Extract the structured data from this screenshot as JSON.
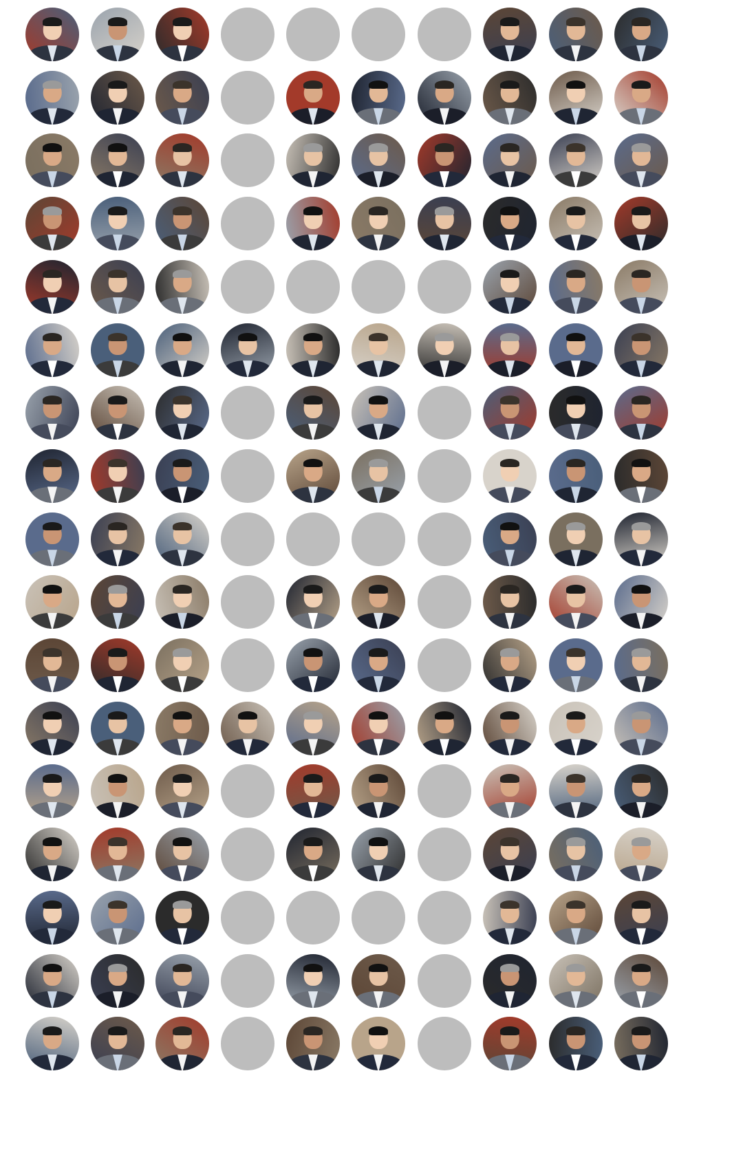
{
  "grid": {
    "columns": 10,
    "rows": 17,
    "placeholder_color": "#bdbdbd",
    "cells": [
      [
        "photo",
        "photo",
        "photo",
        "placeholder",
        "placeholder",
        "placeholder",
        "placeholder",
        "photo",
        "photo",
        "photo"
      ],
      [
        "photo",
        "photo",
        "photo",
        "placeholder",
        "photo",
        "photo",
        "photo",
        "photo",
        "photo",
        "photo"
      ],
      [
        "photo",
        "photo",
        "photo",
        "placeholder",
        "photo",
        "photo",
        "photo",
        "photo",
        "photo",
        "photo"
      ],
      [
        "photo",
        "photo",
        "photo",
        "placeholder",
        "photo",
        "photo",
        "photo",
        "photo",
        "photo",
        "photo"
      ],
      [
        "photo",
        "photo",
        "photo",
        "placeholder",
        "placeholder",
        "placeholder",
        "placeholder",
        "photo",
        "photo",
        "photo"
      ],
      [
        "photo",
        "photo",
        "photo",
        "photo",
        "photo",
        "photo",
        "photo",
        "photo",
        "photo",
        "photo"
      ],
      [
        "photo",
        "photo",
        "photo",
        "placeholder",
        "photo",
        "photo",
        "placeholder",
        "photo",
        "photo",
        "photo"
      ],
      [
        "photo",
        "photo",
        "photo",
        "placeholder",
        "photo",
        "photo",
        "placeholder",
        "photo",
        "photo",
        "photo"
      ],
      [
        "photo",
        "photo",
        "photo",
        "placeholder",
        "placeholder",
        "placeholder",
        "placeholder",
        "photo",
        "photo",
        "photo"
      ],
      [
        "photo",
        "photo",
        "photo",
        "placeholder",
        "photo",
        "photo",
        "placeholder",
        "photo",
        "photo",
        "photo"
      ],
      [
        "photo",
        "photo",
        "photo",
        "placeholder",
        "photo",
        "photo",
        "placeholder",
        "photo",
        "photo",
        "photo"
      ],
      [
        "photo",
        "photo",
        "photo",
        "photo",
        "photo",
        "photo",
        "photo",
        "photo",
        "photo",
        "photo"
      ],
      [
        "photo",
        "photo",
        "photo",
        "placeholder",
        "photo",
        "photo",
        "placeholder",
        "photo",
        "photo",
        "photo"
      ],
      [
        "photo",
        "photo",
        "photo",
        "placeholder",
        "photo",
        "photo",
        "placeholder",
        "photo",
        "photo",
        "photo"
      ],
      [
        "photo",
        "photo",
        "photo",
        "placeholder",
        "placeholder",
        "placeholder",
        "placeholder",
        "photo",
        "photo",
        "photo"
      ],
      [
        "photo",
        "photo",
        "photo",
        "placeholder",
        "photo",
        "photo",
        "placeholder",
        "photo",
        "photo",
        "photo"
      ],
      [
        "photo",
        "photo",
        "photo",
        "placeholder",
        "photo",
        "photo",
        "placeholder",
        "photo",
        "photo",
        "photo"
      ]
    ]
  }
}
